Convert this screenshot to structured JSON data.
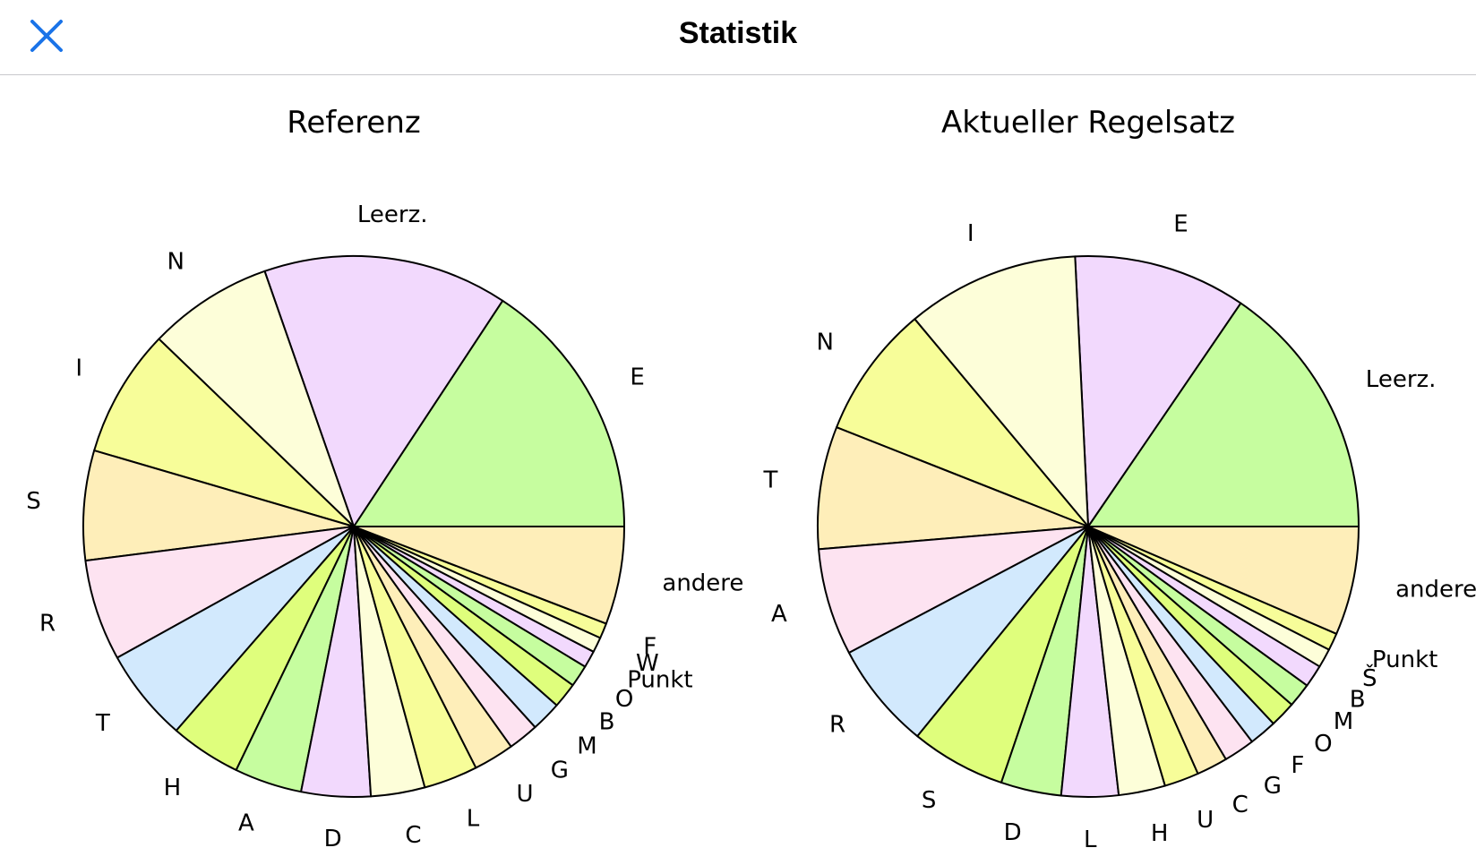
{
  "navbar": {
    "title": "Statistik",
    "close_icon": "close-icon",
    "accent_color": "#1a73e8"
  },
  "palette": [
    "#c6fd9f",
    "#f2d9fd",
    "#fdfed9",
    "#f7fd99",
    "#feeeb9",
    "#fde3f1",
    "#d2e9fd",
    "#dffe7c"
  ],
  "chart_data": [
    {
      "type": "pie",
      "title": "Referenz",
      "start": "right, counter-clockwise",
      "slices": [
        {
          "label": "E",
          "value": 15.6
        },
        {
          "label": "Leerz.",
          "value": 14.5
        },
        {
          "label": "N",
          "value": 7.4
        },
        {
          "label": "I",
          "value": 7.6
        },
        {
          "label": "S",
          "value": 6.5
        },
        {
          "label": "R",
          "value": 6.0
        },
        {
          "label": "T",
          "value": 5.5
        },
        {
          "label": "H",
          "value": 4.2
        },
        {
          "label": "A",
          "value": 4.0
        },
        {
          "label": "D",
          "value": 4.1
        },
        {
          "label": "C",
          "value": 3.2
        },
        {
          "label": "L",
          "value": 3.2
        },
        {
          "label": "U",
          "value": 2.4
        },
        {
          "label": "G",
          "value": 1.8
        },
        {
          "label": "M",
          "value": 1.8
        },
        {
          "label": "B",
          "value": 1.5
        },
        {
          "label": "O",
          "value": 1.3
        },
        {
          "label": "Punkt",
          "value": 1.0
        },
        {
          "label": "W",
          "value": 0.9
        },
        {
          "label": "F",
          "value": 0.9
        },
        {
          "label": "andere",
          "value": 5.8
        }
      ]
    },
    {
      "type": "pie",
      "title": "Aktueller Regelsatz",
      "start": "right, counter-clockwise",
      "slices": [
        {
          "label": "Leerz.",
          "value": 15.0
        },
        {
          "label": "E",
          "value": 10.0
        },
        {
          "label": "I",
          "value": 10.0
        },
        {
          "label": "N",
          "value": 7.7
        },
        {
          "label": "T",
          "value": 7.1
        },
        {
          "label": "A",
          "value": 6.2
        },
        {
          "label": "R",
          "value": 6.2
        },
        {
          "label": "S",
          "value": 5.5
        },
        {
          "label": "D",
          "value": 3.5
        },
        {
          "label": "L",
          "value": 3.3
        },
        {
          "label": "H",
          "value": 2.7
        },
        {
          "label": "U",
          "value": 2.0
        },
        {
          "label": "C",
          "value": 1.8
        },
        {
          "label": "G",
          "value": 1.8
        },
        {
          "label": "F",
          "value": 1.6
        },
        {
          "label": "O",
          "value": 1.5
        },
        {
          "label": "M",
          "value": 1.4
        },
        {
          "label": "B",
          "value": 1.3
        },
        {
          "label": "Š",
          "value": 1.1
        },
        {
          "label": "Punkt",
          "value": 1.0
        },
        {
          "label": "andere",
          "value": 6.3
        }
      ]
    }
  ]
}
